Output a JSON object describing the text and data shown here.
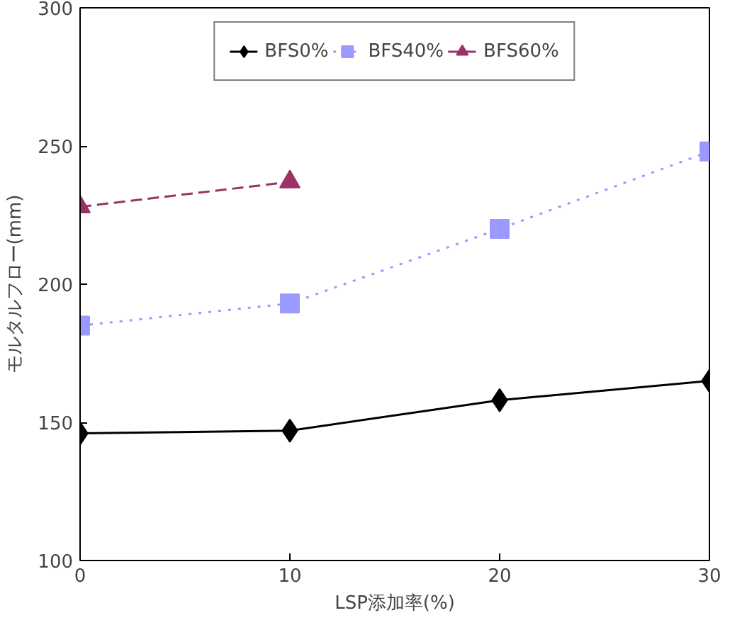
{
  "chart_data": {
    "type": "line",
    "xlabel": "LSP添加率(%)",
    "ylabel": "モルタルフロー(mm)",
    "xlim": [
      0,
      30
    ],
    "xticks": [
      0,
      10,
      20,
      30
    ],
    "ylim": [
      100,
      300
    ],
    "yticks": [
      100,
      150,
      200,
      250,
      300
    ],
    "grid": false,
    "legend": "top",
    "series": [
      {
        "name": "BFS0%",
        "color": "#000000",
        "marker": "diamond",
        "line_style": "solid",
        "x": [
          0,
          10,
          20,
          30
        ],
        "values": [
          146,
          147,
          158,
          165
        ]
      },
      {
        "name": "BFS40%",
        "color": "#9999ff",
        "marker": "square",
        "line_style": "dotted",
        "x": [
          0,
          10,
          20,
          30
        ],
        "values": [
          185,
          193,
          220,
          248
        ]
      },
      {
        "name": "BFS60%",
        "color": "#993366",
        "marker": "triangle",
        "line_style": "dashed",
        "x": [
          0,
          10
        ],
        "values": [
          228,
          237
        ]
      }
    ]
  }
}
